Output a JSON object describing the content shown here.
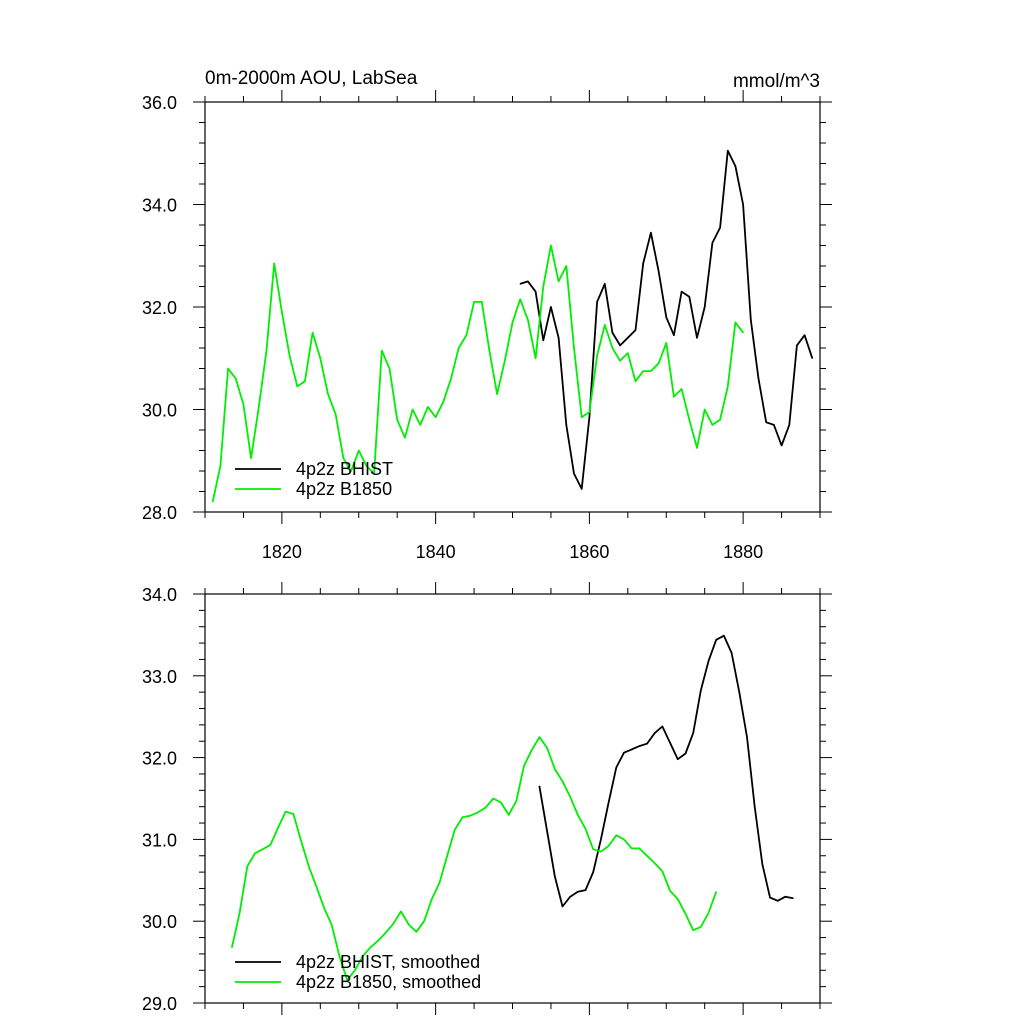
{
  "chart_data": [
    {
      "type": "line",
      "title_left": "0m-2000m AOU, LabSea",
      "title_right": "mmol/m^3",
      "xlim": [
        1810,
        1890
      ],
      "ylim": [
        28,
        36
      ],
      "xticks": [
        1820,
        1840,
        1860,
        1880
      ],
      "xtick_labels": [
        "1820",
        "1840",
        "1860",
        "1880"
      ],
      "yticks": [
        28,
        30,
        32,
        34,
        36
      ],
      "ytick_labels": [
        "28.0",
        "30.0",
        "32.0",
        "34.0",
        "36.0"
      ],
      "grid": false,
      "legend_placement": "bottom-left",
      "series": [
        {
          "name": "4p2z BHIST",
          "color": "#000000",
          "x": [
            1851,
            1852,
            1853,
            1854,
            1855,
            1856,
            1857,
            1858,
            1859,
            1860,
            1861,
            1862,
            1863,
            1864,
            1865,
            1866,
            1867,
            1868,
            1869,
            1870,
            1871,
            1872,
            1873,
            1874,
            1875,
            1876,
            1877,
            1878,
            1879,
            1880,
            1881,
            1882,
            1883,
            1884,
            1885,
            1886,
            1887,
            1888,
            1889
          ],
          "y": [
            32.45,
            32.5,
            32.3,
            31.35,
            32.0,
            31.4,
            29.7,
            28.75,
            28.45,
            29.85,
            32.1,
            32.45,
            31.5,
            31.25,
            31.4,
            31.55,
            32.85,
            33.45,
            32.7,
            31.8,
            31.45,
            32.3,
            32.2,
            31.4,
            32.0,
            33.25,
            33.55,
            35.05,
            34.75,
            34.0,
            31.75,
            30.6,
            29.75,
            29.7,
            29.3,
            29.7,
            31.25,
            31.45,
            31.0
          ]
        },
        {
          "name": "4p2z B1850",
          "color": "#00ee00",
          "x": [
            1811,
            1812,
            1813,
            1814,
            1815,
            1816,
            1817,
            1818,
            1819,
            1820,
            1821,
            1822,
            1823,
            1824,
            1825,
            1826,
            1827,
            1828,
            1829,
            1830,
            1831,
            1832,
            1833,
            1834,
            1835,
            1836,
            1837,
            1838,
            1839,
            1840,
            1841,
            1842,
            1843,
            1844,
            1845,
            1846,
            1847,
            1848,
            1849,
            1850,
            1851,
            1852,
            1853,
            1854,
            1855,
            1856,
            1857,
            1858,
            1859,
            1860,
            1861,
            1862,
            1863,
            1864,
            1865,
            1866,
            1867,
            1868,
            1869,
            1870,
            1871,
            1872,
            1873,
            1874,
            1875,
            1876,
            1877,
            1878,
            1879,
            1880
          ],
          "y": [
            28.2,
            28.9,
            30.8,
            30.6,
            30.1,
            29.05,
            30.05,
            31.15,
            32.85,
            31.9,
            31.05,
            30.45,
            30.55,
            31.5,
            31.0,
            30.3,
            29.9,
            29.05,
            28.8,
            29.2,
            28.9,
            28.75,
            31.15,
            30.8,
            29.8,
            29.45,
            30.0,
            29.7,
            30.05,
            29.85,
            30.15,
            30.6,
            31.2,
            31.45,
            32.1,
            32.1,
            31.15,
            30.3,
            30.95,
            31.7,
            32.15,
            31.75,
            31.0,
            32.4,
            33.2,
            32.5,
            32.8,
            31.2,
            29.85,
            29.95,
            31.05,
            31.65,
            31.2,
            30.95,
            31.1,
            30.55,
            30.75,
            30.75,
            30.9,
            31.3,
            30.25,
            30.4,
            29.8,
            29.25,
            30.0,
            29.7,
            29.8,
            30.45,
            31.7,
            31.5
          ]
        }
      ]
    },
    {
      "type": "line",
      "xlim": [
        1810,
        1890
      ],
      "ylim": [
        29,
        34
      ],
      "xticks": [
        1820,
        1840,
        1860,
        1880
      ],
      "yticks": [
        29,
        30,
        31,
        32,
        33,
        34
      ],
      "ytick_labels": [
        "29.0",
        "30.0",
        "31.0",
        "32.0",
        "33.0",
        "34.0"
      ],
      "grid": false,
      "legend_placement": "bottom-left",
      "series": [
        {
          "name": "4p2z BHIST, smoothed",
          "color": "#000000",
          "x": [
            1853.5,
            1854.5,
            1855.5,
            1856.5,
            1857.5,
            1858.5,
            1859.5,
            1860.5,
            1861.5,
            1862.5,
            1863.5,
            1864.5,
            1865.5,
            1866.5,
            1867.5,
            1868.5,
            1869.5,
            1870.5,
            1871.5,
            1872.5,
            1873.5,
            1874.5,
            1875.5,
            1876.5,
            1877.5,
            1878.5,
            1879.5,
            1880.5,
            1881.5,
            1882.5,
            1883.5,
            1884.5,
            1885.5,
            1886.5
          ],
          "y": [
            31.65,
            31.1,
            30.55,
            30.18,
            30.3,
            30.36,
            30.38,
            30.6,
            31.0,
            31.45,
            31.88,
            32.06,
            32.1,
            32.14,
            32.17,
            32.3,
            32.38,
            32.18,
            31.98,
            32.05,
            32.3,
            32.82,
            33.18,
            33.44,
            33.49,
            33.28,
            32.8,
            32.25,
            31.4,
            30.7,
            30.29,
            30.25,
            30.3,
            30.28
          ]
        },
        {
          "name": "4p2z B1850, smoothed",
          "color": "#00ee00",
          "x": [
            1813.5,
            1814.5,
            1815.5,
            1816.5,
            1817.5,
            1818.5,
            1819.5,
            1820.5,
            1821.5,
            1822.5,
            1823.5,
            1824.5,
            1825.5,
            1826.5,
            1827.5,
            1828.5,
            1829.5,
            1830.5,
            1831.5,
            1832.5,
            1833.5,
            1834.5,
            1835.5,
            1836.5,
            1837.5,
            1838.5,
            1839.5,
            1840.5,
            1841.5,
            1842.5,
            1843.5,
            1844.5,
            1845.5,
            1846.5,
            1847.5,
            1848.5,
            1849.5,
            1850.5,
            1851.5,
            1852.5,
            1853.5,
            1854.5,
            1855.5,
            1856.5,
            1857.5,
            1858.5,
            1859.5,
            1860.5,
            1861.5,
            1862.5,
            1863.5,
            1864.5,
            1865.5,
            1866.5,
            1867.5,
            1868.5,
            1869.5,
            1870.5,
            1871.5,
            1872.5,
            1873.5,
            1874.5,
            1875.5,
            1876.5
          ],
          "y": [
            29.68,
            30.1,
            30.67,
            30.83,
            30.88,
            30.93,
            31.14,
            31.34,
            31.31,
            30.98,
            30.67,
            30.42,
            30.16,
            29.95,
            29.57,
            29.28,
            29.4,
            29.57,
            29.68,
            29.76,
            29.86,
            29.97,
            30.12,
            29.96,
            29.87,
            30.0,
            30.27,
            30.47,
            30.8,
            31.12,
            31.27,
            31.29,
            31.33,
            31.39,
            31.5,
            31.45,
            31.3,
            31.47,
            31.9,
            32.09,
            32.25,
            32.12,
            31.86,
            31.71,
            31.52,
            31.3,
            31.13,
            30.88,
            30.85,
            30.92,
            31.05,
            31.0,
            30.89,
            30.89,
            30.8,
            30.71,
            30.61,
            30.37,
            30.27,
            30.09,
            29.89,
            29.93,
            30.1,
            30.36
          ]
        }
      ]
    }
  ]
}
